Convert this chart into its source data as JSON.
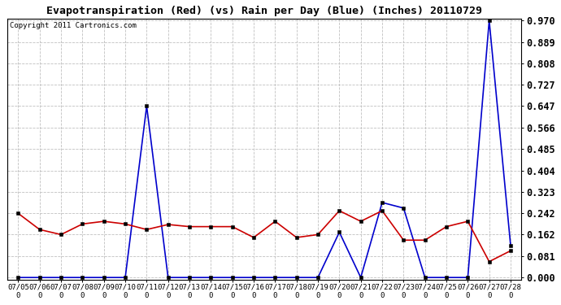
{
  "title": "Evapotranspiration (Red) (vs) Rain per Day (Blue) (Inches) 20110729",
  "copyright": "Copyright 2011 Cartronics.com",
  "dates": [
    "07/05\n0",
    "07/06\n0",
    "07/07\n0",
    "07/08\n0",
    "07/09\n0",
    "07/10\n0",
    "07/11\n0",
    "07/12\n0",
    "07/13\n0",
    "07/14\n0",
    "07/15\n0",
    "07/16\n0",
    "07/17\n0",
    "07/18\n0",
    "07/19\n0",
    "07/20\n0",
    "07/21\n0",
    "07/22\n0",
    "07/23\n0",
    "07/24\n0",
    "07/25\n0",
    "07/26\n0",
    "07/27\n0",
    "07/28\n0"
  ],
  "red_et": [
    0.242,
    0.181,
    0.162,
    0.202,
    0.212,
    0.202,
    0.181,
    0.2,
    0.192,
    0.192,
    0.192,
    0.151,
    0.212,
    0.151,
    0.162,
    0.252,
    0.212,
    0.252,
    0.141,
    0.141,
    0.192,
    0.212,
    0.06,
    0.101
  ],
  "blue_rain": [
    0.0,
    0.0,
    0.0,
    0.0,
    0.0,
    0.0,
    0.647,
    0.0,
    0.0,
    0.0,
    0.0,
    0.0,
    0.0,
    0.0,
    0.0,
    0.171,
    0.0,
    0.283,
    0.262,
    0.0,
    0.0,
    0.0,
    0.97,
    0.121
  ],
  "yticks": [
    0.0,
    0.081,
    0.162,
    0.242,
    0.323,
    0.404,
    0.485,
    0.566,
    0.647,
    0.727,
    0.808,
    0.889,
    0.97
  ],
  "ymin": -0.008,
  "ymax": 0.978,
  "bg_color": "#ffffff",
  "grid_color": "#c0c0c0",
  "title_fontsize": 9.5,
  "copyright_fontsize": 6.5,
  "red_color": "#cc0000",
  "blue_color": "#0000cc",
  "markersize": 2.5,
  "linewidth": 1.2,
  "ytick_fontsize": 8.5,
  "xtick_fontsize": 6.5
}
